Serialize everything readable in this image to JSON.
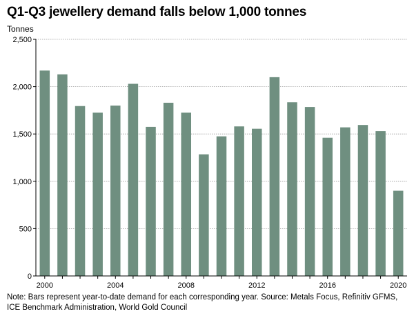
{
  "chart_data": {
    "type": "bar",
    "title": "Q1-Q3 jewellery demand falls below 1,000 tonnes",
    "ylabel": "Tonnes",
    "xlabel": "",
    "ylim": [
      0,
      2500
    ],
    "yticks": [
      0,
      500,
      1000,
      1500,
      2000,
      2500
    ],
    "ytick_labels": [
      "0",
      "500",
      "1,000",
      "1,500",
      "2,000",
      "2,500"
    ],
    "xtick_labels": [
      "2000",
      "2004",
      "2008",
      "2012",
      "2016",
      "2020"
    ],
    "grid": true,
    "bar_color": "#6f8f80",
    "categories": [
      2000,
      2001,
      2002,
      2003,
      2004,
      2005,
      2006,
      2007,
      2008,
      2009,
      2010,
      2011,
      2012,
      2013,
      2014,
      2015,
      2016,
      2017,
      2018,
      2019,
      2020
    ],
    "values": [
      2170,
      2130,
      1795,
      1725,
      1800,
      2030,
      1575,
      1830,
      1725,
      1285,
      1475,
      1580,
      1555,
      2100,
      1835,
      1785,
      1460,
      1570,
      1595,
      1530,
      900
    ],
    "note": "Note: Bars represent year-to-date demand for each corresponding year. Source: Metals Focus, Refinitiv GFMS, ICE Benchmark Administration, World Gold Council"
  }
}
